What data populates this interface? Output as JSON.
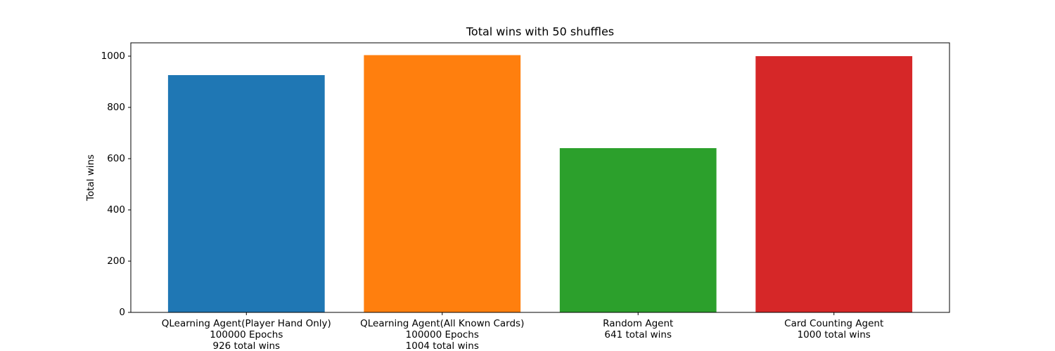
{
  "chart_data": {
    "type": "bar",
    "title": "Total wins with 50 shuffles",
    "y_label": "Total wins",
    "categories": [
      [
        "QLearning Agent(Player Hand Only)",
        "100000 Epochs",
        "926 total wins"
      ],
      [
        "QLearning Agent(All Known Cards)",
        "100000 Epochs",
        "1004 total wins"
      ],
      [
        "Random Agent",
        "641 total wins"
      ],
      [
        "Card Counting Agent",
        "1000 total wins"
      ]
    ],
    "values": [
      926,
      1004,
      641,
      1000
    ],
    "colors": [
      "#1f77b4",
      "#ff7f0e",
      "#2ca02c",
      "#d62728"
    ],
    "ylim": [
      0,
      1052
    ],
    "yticks": [
      0,
      200,
      400,
      600,
      800,
      1000
    ],
    "grid": false
  }
}
